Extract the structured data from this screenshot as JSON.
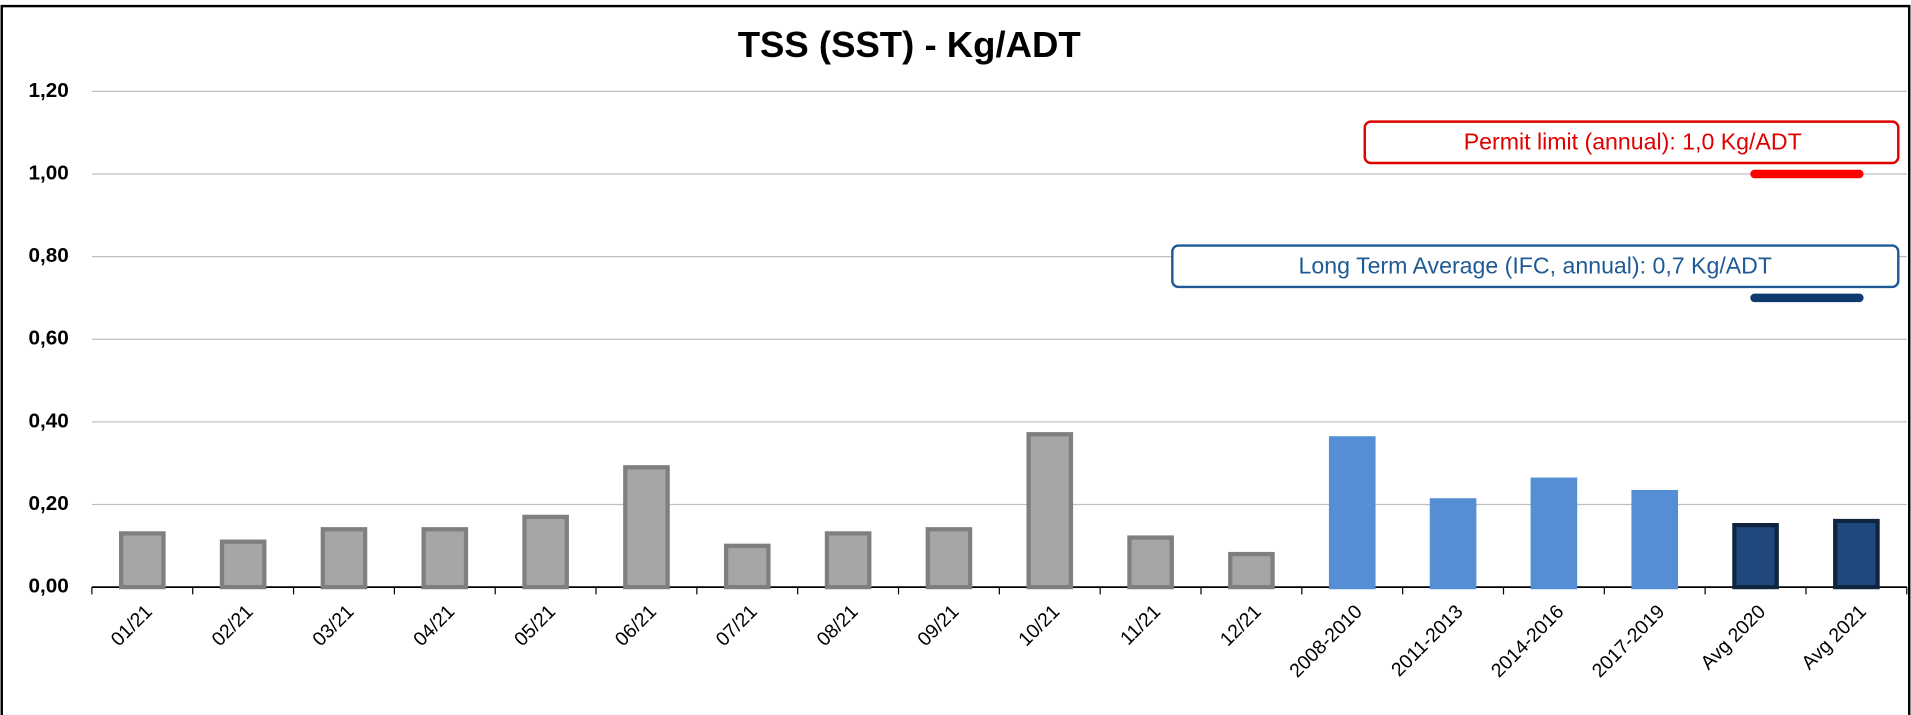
{
  "chart_data": {
    "type": "bar",
    "title": "TSS (SST) - Kg/ADT",
    "categories": [
      "01/21",
      "02/21",
      "03/21",
      "04/21",
      "05/21",
      "06/21",
      "07/21",
      "08/21",
      "09/21",
      "10/21",
      "11/21",
      "12/21",
      "2008-2010",
      "2011-2013",
      "2014-2016",
      "2017-2019",
      "Avg 2020",
      "Avg 2021"
    ],
    "values": [
      0.13,
      0.11,
      0.14,
      0.14,
      0.17,
      0.29,
      0.1,
      0.13,
      0.14,
      0.37,
      0.12,
      0.08,
      0.36,
      0.21,
      0.26,
      0.23,
      0.15,
      0.16
    ],
    "colors": [
      "#a6a6a6",
      "#a6a6a6",
      "#a6a6a6",
      "#a6a6a6",
      "#a6a6a6",
      "#a6a6a6",
      "#a6a6a6",
      "#a6a6a6",
      "#a6a6a6",
      "#a6a6a6",
      "#a6a6a6",
      "#a6a6a6",
      "#558ed5",
      "#558ed5",
      "#558ed5",
      "#558ed5",
      "#1f497d",
      "#1f497d"
    ],
    "edge_colors": [
      "#7f7f7f",
      "#7f7f7f",
      "#7f7f7f",
      "#7f7f7f",
      "#7f7f7f",
      "#7f7f7f",
      "#7f7f7f",
      "#7f7f7f",
      "#7f7f7f",
      "#7f7f7f",
      "#7f7f7f",
      "#7f7f7f",
      "#558ed5",
      "#558ed5",
      "#558ed5",
      "#558ed5",
      "#0f243e",
      "#0f243e"
    ],
    "ylim": [
      0,
      1.2
    ],
    "yticks": [
      {
        "value": 0,
        "label": "0,00"
      },
      {
        "value": 0.2,
        "label": "0,20"
      },
      {
        "value": 0.4,
        "label": "0,40"
      },
      {
        "value": 0.6,
        "label": "0,60"
      },
      {
        "value": 0.8,
        "label": "0,80"
      },
      {
        "value": 1.0,
        "label": "1,00"
      },
      {
        "value": 1.2,
        "label": "1,20"
      }
    ],
    "grid": true,
    "reference_lines": [
      {
        "label": "Permit limit (annual): 1,0 Kg/ADT",
        "value": 1.0,
        "color": "#ff0000",
        "text_color": "#e00000"
      },
      {
        "label": "Long Term Average (IFC, annual): 0,7 Kg/ADT",
        "value": 0.7,
        "color": "#0f3a6e",
        "text_color": "#1f5a96"
      }
    ]
  }
}
